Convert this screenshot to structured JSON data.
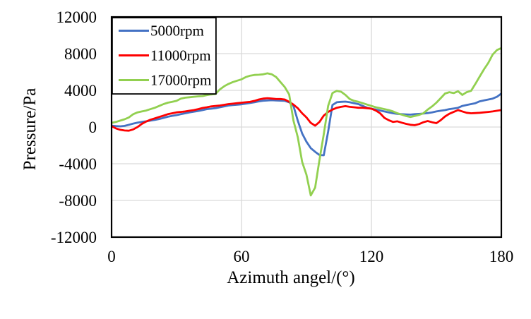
{
  "figure": {
    "background": "#ffffff",
    "axis_color": "#000000",
    "grid_color": "#D9D9D9",
    "text_color": "#000000"
  },
  "chart_data": {
    "type": "line",
    "title": "",
    "xlabel": "Azimuth angel/(°)",
    "ylabel": "Pressure/Pa",
    "xlim": [
      0,
      180
    ],
    "ylim": [
      -12000,
      12000
    ],
    "x_ticks": [
      0,
      60,
      120,
      180
    ],
    "y_ticks": [
      -12000,
      -8000,
      -4000,
      0,
      4000,
      8000,
      12000
    ],
    "grid": true,
    "legend_position": "top-left",
    "x_start": 0,
    "x_step": 2,
    "series": [
      {
        "name": "5000rpm",
        "color": "#4472C4",
        "values": [
          150,
          100,
          80,
          120,
          250,
          380,
          480,
          560,
          620,
          700,
          780,
          880,
          1000,
          1120,
          1220,
          1300,
          1400,
          1500,
          1600,
          1680,
          1750,
          1850,
          1950,
          2000,
          2060,
          2150,
          2250,
          2350,
          2400,
          2430,
          2480,
          2550,
          2620,
          2700,
          2800,
          2870,
          2900,
          2920,
          2900,
          2880,
          2850,
          2700,
          2300,
          700,
          -700,
          -1600,
          -2300,
          -2700,
          -3050,
          -3080,
          -500,
          2400,
          2700,
          2750,
          2770,
          2700,
          2600,
          2500,
          2300,
          2100,
          2000,
          1900,
          1800,
          1700,
          1600,
          1500,
          1430,
          1400,
          1380,
          1350,
          1400,
          1430,
          1470,
          1520,
          1600,
          1700,
          1780,
          1850,
          1950,
          2020,
          2100,
          2300,
          2400,
          2500,
          2600,
          2800,
          2900,
          3000,
          3100,
          3300,
          3650
        ]
      },
      {
        "name": "11000rpm",
        "color": "#FE0000",
        "values": [
          100,
          -150,
          -300,
          -380,
          -400,
          -250,
          0,
          350,
          600,
          800,
          950,
          1100,
          1250,
          1400,
          1500,
          1600,
          1650,
          1700,
          1780,
          1850,
          1950,
          2080,
          2150,
          2250,
          2300,
          2350,
          2420,
          2500,
          2550,
          2600,
          2650,
          2700,
          2750,
          2850,
          3000,
          3100,
          3150,
          3100,
          3050,
          3050,
          3000,
          2750,
          2450,
          2050,
          1500,
          1050,
          450,
          150,
          550,
          1250,
          1650,
          1900,
          2100,
          2200,
          2280,
          2200,
          2150,
          2100,
          2100,
          2050,
          2000,
          1800,
          1500,
          1000,
          750,
          550,
          620,
          480,
          350,
          250,
          200,
          320,
          520,
          650,
          520,
          420,
          750,
          1150,
          1450,
          1650,
          1850,
          1700,
          1550,
          1500,
          1520,
          1550,
          1600,
          1650,
          1700,
          1780,
          1850
        ]
      },
      {
        "name": "17000rpm",
        "color": "#92D050",
        "values": [
          450,
          550,
          700,
          850,
          1050,
          1400,
          1600,
          1700,
          1800,
          1950,
          2100,
          2300,
          2500,
          2650,
          2750,
          2850,
          3100,
          3200,
          3250,
          3300,
          3350,
          3380,
          3480,
          3550,
          3600,
          4100,
          4450,
          4700,
          4900,
          5050,
          5200,
          5450,
          5600,
          5680,
          5700,
          5750,
          5850,
          5750,
          5450,
          4900,
          4350,
          3550,
          700,
          -1100,
          -3800,
          -5200,
          -7450,
          -6600,
          -3600,
          -800,
          2300,
          3700,
          3950,
          3850,
          3500,
          3050,
          2850,
          2750,
          2600,
          2450,
          2300,
          2150,
          2050,
          1950,
          1850,
          1700,
          1500,
          1350,
          1200,
          1100,
          1200,
          1320,
          1500,
          1900,
          2250,
          2650,
          3150,
          3650,
          3800,
          3700,
          3900,
          3500,
          3800,
          3950,
          4700,
          5500,
          6300,
          7000,
          7900,
          8400,
          8600
        ]
      }
    ]
  }
}
